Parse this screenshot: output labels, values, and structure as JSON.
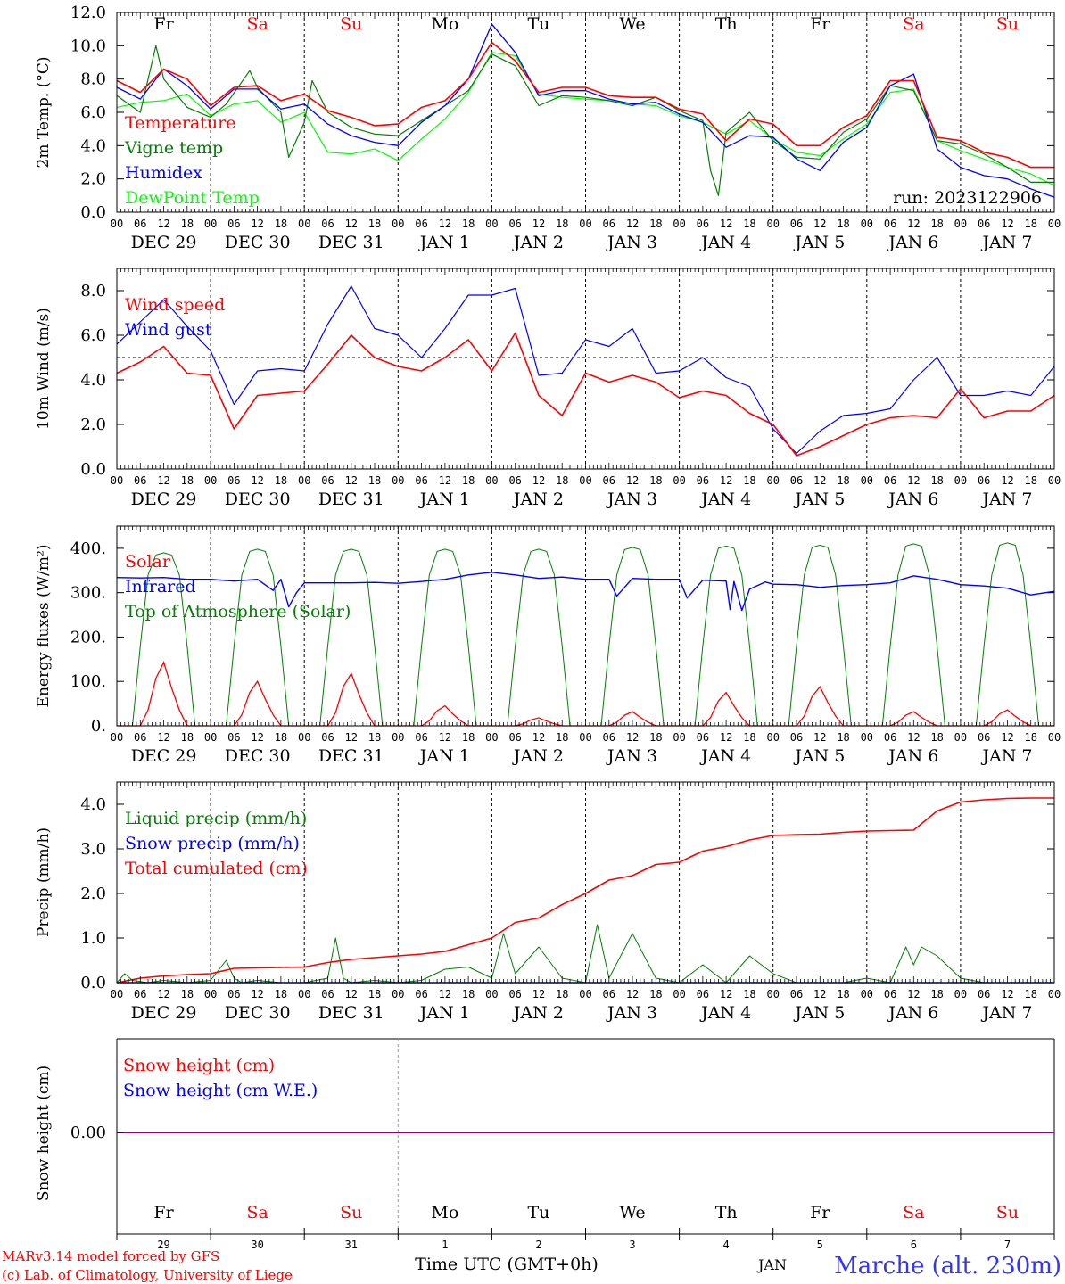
{
  "chart_data": [
    {
      "type": "line",
      "ylabel": "2m Temp. (°C)",
      "ylim": [
        0,
        12
      ],
      "yticks": [
        "0.0",
        "2.0",
        "4.0",
        "6.0",
        "8.0",
        "10.0",
        "12.0"
      ],
      "hour_ticks": [
        "00",
        "06",
        "12",
        "18"
      ],
      "dates": [
        "DEC 29",
        "DEC 30",
        "DEC 31",
        "JAN  1",
        "JAN  2",
        "JAN  3",
        "JAN  4",
        "JAN  5",
        "JAN  6",
        "JAN  7"
      ],
      "day_names": [
        {
          "label": "Fr",
          "color": "#000000"
        },
        {
          "label": "Sa",
          "color": "#ff0000"
        },
        {
          "label": "Su",
          "color": "#ff0000"
        },
        {
          "label": "Mo",
          "color": "#000000"
        },
        {
          "label": "Tu",
          "color": "#000000"
        },
        {
          "label": "We",
          "color": "#000000"
        },
        {
          "label": "Th",
          "color": "#000000"
        },
        {
          "label": "Fr",
          "color": "#000000"
        },
        {
          "label": "Sa",
          "color": "#ff0000"
        },
        {
          "label": "Su",
          "color": "#ff0000"
        }
      ],
      "run_label": "run: 2023122906",
      "x_unit": "hours since DEC 29 00 UTC",
      "series": [
        {
          "name": "Temperature",
          "color": "#ff0000",
          "x": [
            0,
            6,
            12,
            18,
            24,
            30,
            36,
            42,
            48,
            54,
            60,
            66,
            72,
            78,
            84,
            90,
            96,
            102,
            108,
            114,
            120,
            126,
            132,
            138,
            144,
            150,
            156,
            162,
            168,
            174,
            180,
            186,
            192,
            198,
            204,
            210,
            216,
            222,
            228,
            234,
            240
          ],
          "values": [
            7.9,
            7.2,
            8.6,
            8.0,
            6.4,
            7.5,
            7.6,
            6.7,
            7.1,
            6.1,
            5.7,
            5.2,
            5.3,
            6.3,
            6.7,
            8.0,
            10.2,
            9.1,
            7.2,
            7.5,
            7.5,
            7.0,
            6.9,
            6.9,
            6.2,
            5.9,
            4.3,
            5.6,
            5.3,
            4.0,
            4.0,
            5.1,
            5.8,
            7.9,
            7.9,
            4.5,
            4.3,
            3.6,
            3.3,
            2.7,
            2.7
          ]
        },
        {
          "name": "Vigne temp",
          "color": "#008000",
          "x": [
            0,
            6,
            10,
            12,
            18,
            24,
            28,
            34,
            36,
            42,
            44,
            48,
            50,
            54,
            60,
            66,
            72,
            78,
            84,
            90,
            96,
            102,
            108,
            114,
            120,
            126,
            132,
            138,
            144,
            150,
            152,
            154,
            156,
            162,
            168,
            174,
            180,
            186,
            192,
            198,
            204,
            210,
            216,
            222,
            228,
            234,
            240
          ],
          "values": [
            7.0,
            6.0,
            10.0,
            8.0,
            6.3,
            5.7,
            6.5,
            8.5,
            7.5,
            6.0,
            3.3,
            5.4,
            7.9,
            6.0,
            5.1,
            4.7,
            4.6,
            5.5,
            6.4,
            7.3,
            9.5,
            8.8,
            6.4,
            7.0,
            6.9,
            6.7,
            6.4,
            6.9,
            6.1,
            5.5,
            2.5,
            1.0,
            4.8,
            6.0,
            4.3,
            3.3,
            3.2,
            4.8,
            5.6,
            7.6,
            7.3,
            4.3,
            4.1,
            3.5,
            2.7,
            1.8,
            1.8
          ]
        },
        {
          "name": "Humidex",
          "color": "#0000ff",
          "x": [
            0,
            6,
            12,
            18,
            24,
            30,
            36,
            42,
            48,
            54,
            60,
            66,
            72,
            78,
            84,
            90,
            96,
            102,
            108,
            114,
            120,
            126,
            132,
            138,
            144,
            150,
            156,
            162,
            168,
            174,
            180,
            186,
            192,
            198,
            204,
            210,
            216,
            222,
            228,
            234,
            240
          ],
          "values": [
            7.5,
            6.8,
            8.6,
            7.6,
            6.2,
            7.4,
            7.4,
            6.2,
            6.5,
            5.3,
            4.6,
            4.2,
            4.0,
            5.4,
            6.4,
            8.0,
            11.3,
            9.6,
            7.0,
            7.3,
            7.3,
            6.8,
            6.5,
            6.6,
            5.9,
            5.4,
            3.9,
            4.6,
            4.5,
            3.2,
            2.5,
            4.2,
            5.1,
            7.6,
            8.3,
            3.8,
            2.7,
            2.2,
            2.0,
            1.4,
            0.9
          ]
        },
        {
          "name": "DewPoint Temp",
          "color": "#00ff00",
          "x": [
            0,
            6,
            12,
            18,
            24,
            30,
            36,
            42,
            48,
            54,
            60,
            66,
            72,
            78,
            84,
            90,
            96,
            102,
            108,
            114,
            120,
            126,
            132,
            138,
            144,
            150,
            156,
            162,
            168,
            174,
            180,
            186,
            192,
            198,
            204,
            210,
            216,
            222,
            228,
            234,
            240
          ],
          "values": [
            6.3,
            6.6,
            6.7,
            7.1,
            5.8,
            6.5,
            6.7,
            5.4,
            6.0,
            3.6,
            3.5,
            3.8,
            3.1,
            4.4,
            5.6,
            7.2,
            9.6,
            9.4,
            7.1,
            6.9,
            6.8,
            6.7,
            6.5,
            6.4,
            5.8,
            5.4,
            4.7,
            5.5,
            4.4,
            3.6,
            3.4,
            4.4,
            5.3,
            7.2,
            7.4,
            4.3,
            3.7,
            3.2,
            2.7,
            2.3,
            1.6
          ]
        }
      ]
    },
    {
      "type": "line",
      "ylabel": "10m Wind (m/s)",
      "ylim": [
        0,
        9
      ],
      "yticks": [
        "0.0",
        "2.0",
        "4.0",
        "6.0",
        "8.0"
      ],
      "reference_line": 5,
      "series": [
        {
          "name": "Wind speed",
          "color": "#ff0000",
          "x": [
            0,
            6,
            12,
            18,
            24,
            30,
            36,
            42,
            48,
            54,
            60,
            66,
            72,
            78,
            84,
            90,
            96,
            102,
            108,
            114,
            120,
            126,
            132,
            138,
            144,
            150,
            156,
            162,
            168,
            174,
            180,
            186,
            192,
            198,
            204,
            210,
            216,
            222,
            228,
            234,
            240
          ],
          "values": [
            4.3,
            4.8,
            5.5,
            4.3,
            4.2,
            1.8,
            3.3,
            3.4,
            3.5,
            4.7,
            6.0,
            5.0,
            4.6,
            4.4,
            5.0,
            5.8,
            4.4,
            6.1,
            3.3,
            2.4,
            4.3,
            3.9,
            4.2,
            3.9,
            3.2,
            3.5,
            3.3,
            2.5,
            2.0,
            0.6,
            1.0,
            1.5,
            2.0,
            2.3,
            2.4,
            2.3,
            3.6,
            2.3,
            2.6,
            2.6,
            3.3
          ]
        },
        {
          "name": "Wind gust",
          "color": "#0000ff",
          "x": [
            0,
            6,
            12,
            18,
            24,
            30,
            36,
            42,
            48,
            54,
            60,
            66,
            72,
            78,
            84,
            90,
            96,
            102,
            108,
            114,
            120,
            126,
            132,
            138,
            144,
            150,
            156,
            162,
            168,
            174,
            180,
            186,
            192,
            198,
            204,
            210,
            216,
            222,
            228,
            234,
            240
          ],
          "values": [
            5.6,
            6.6,
            7.6,
            6.4,
            5.3,
            2.9,
            4.4,
            4.5,
            4.4,
            6.5,
            8.2,
            6.3,
            6.0,
            5.0,
            6.3,
            7.8,
            7.8,
            8.1,
            4.2,
            4.3,
            5.8,
            5.5,
            6.3,
            4.3,
            4.4,
            5.0,
            4.1,
            3.7,
            1.8,
            0.7,
            1.7,
            2.4,
            2.5,
            2.7,
            4.0,
            5.0,
            3.3,
            3.3,
            3.5,
            3.3,
            4.6
          ]
        }
      ]
    },
    {
      "type": "line",
      "ylabel": "Energy fluxes (W/m²)",
      "ylim": [
        0,
        450
      ],
      "yticks": [
        "0.",
        "100.",
        "200.",
        "300.",
        "400."
      ],
      "peaks": {
        "toa": [
          390,
          398,
          398,
          398,
          398,
          402,
          405,
          407,
          410,
          412
        ],
        "solar": [
          143,
          100,
          118,
          45,
          18,
          32,
          75,
          88,
          32,
          36
        ]
      },
      "infrared": {
        "name": "Infrared",
        "color": "#0000ff",
        "x": [
          0,
          6,
          12,
          18,
          24,
          30,
          36,
          40,
          42,
          44,
          46,
          48,
          54,
          60,
          66,
          72,
          78,
          84,
          90,
          96,
          102,
          108,
          114,
          120,
          126,
          128,
          132,
          138,
          144,
          146,
          150,
          156,
          157,
          158,
          160,
          162,
          166,
          168,
          174,
          180,
          186,
          192,
          198,
          204,
          210,
          216,
          222,
          228,
          234,
          240
        ],
        "values": [
          334,
          333,
          334,
          330,
          330,
          326,
          330,
          305,
          330,
          268,
          300,
          322,
          322,
          322,
          323,
          321,
          325,
          330,
          340,
          346,
          340,
          332,
          335,
          330,
          330,
          292,
          332,
          330,
          330,
          288,
          328,
          326,
          262,
          325,
          260,
          308,
          324,
          319,
          318,
          312,
          316,
          318,
          322,
          338,
          330,
          318,
          315,
          310,
          295,
          303
        ]
      },
      "legend": [
        {
          "name": "Solar",
          "color": "#ff0000"
        },
        {
          "name": "Infrared",
          "color": "#0000ff"
        },
        {
          "name": "Top of Atmosphere (Solar)",
          "color": "#008000"
        }
      ]
    },
    {
      "type": "line",
      "ylabel": "Precip (mm/h)",
      "ylim": [
        0,
        4.5
      ],
      "yticks": [
        "0.0",
        "1.0",
        "2.0",
        "3.0",
        "4.0"
      ],
      "series": [
        {
          "name": "Liquid precip (mm/h)",
          "color": "#008000",
          "x": [
            0,
            2,
            4,
            8,
            12,
            18,
            24,
            28,
            30,
            32,
            36,
            42,
            48,
            54,
            56,
            58,
            60,
            66,
            72,
            78,
            84,
            90,
            96,
            99,
            102,
            108,
            114,
            120,
            123,
            126,
            132,
            138,
            144,
            150,
            156,
            162,
            168,
            174,
            180,
            186,
            192,
            198,
            202,
            204,
            206,
            210,
            216,
            222,
            228,
            234,
            240
          ],
          "values": [
            0,
            0.2,
            0.05,
            0,
            0.05,
            0,
            0.05,
            0.5,
            0.1,
            0,
            0.05,
            0,
            0,
            0.1,
            1.0,
            0.1,
            0,
            0.05,
            0,
            0.05,
            0.3,
            0.35,
            0.1,
            1.1,
            0.2,
            0.8,
            0.1,
            0,
            1.3,
            0.1,
            1.1,
            0.1,
            0,
            0.4,
            0,
            0.6,
            0.2,
            0,
            0,
            0,
            0.1,
            0,
            0.8,
            0.4,
            0.8,
            0.6,
            0.1,
            0,
            0,
            0,
            0
          ]
        },
        {
          "name": "Snow precip (mm/h)",
          "color": "#0000ff",
          "x": [
            0,
            240
          ],
          "values": [
            0,
            0
          ]
        },
        {
          "name": "Total cumulated (cm)",
          "color": "#ff0000",
          "x": [
            0,
            6,
            12,
            18,
            24,
            30,
            36,
            42,
            48,
            54,
            60,
            66,
            72,
            78,
            84,
            90,
            96,
            102,
            108,
            114,
            120,
            126,
            132,
            138,
            144,
            150,
            156,
            162,
            168,
            174,
            180,
            186,
            192,
            198,
            204,
            210,
            216,
            222,
            228,
            234,
            240
          ],
          "values": [
            0,
            0.1,
            0.15,
            0.18,
            0.2,
            0.32,
            0.33,
            0.34,
            0.35,
            0.45,
            0.52,
            0.56,
            0.6,
            0.64,
            0.7,
            0.85,
            1.0,
            1.35,
            1.45,
            1.75,
            2.0,
            2.3,
            2.4,
            2.65,
            2.7,
            2.95,
            3.05,
            3.2,
            3.3,
            3.32,
            3.33,
            3.37,
            3.4,
            3.41,
            3.42,
            3.85,
            4.05,
            4.1,
            4.13,
            4.14,
            4.14
          ]
        }
      ]
    },
    {
      "type": "line",
      "ylabel": "Snow height (cm)",
      "ytick": "0.00",
      "series": [
        {
          "name": "Snow height (cm)",
          "color": "#ff0000",
          "values": [
            0,
            0
          ]
        },
        {
          "name": "Snow height (cm W.E.)",
          "color": "#0000ff",
          "values": [
            0,
            0
          ]
        }
      ],
      "day_names": [
        "Fr",
        "Sa",
        "Su",
        "Mo",
        "Tu",
        "We",
        "Th",
        "Fr",
        "Sa",
        "Su"
      ],
      "day_numbers": [
        "29",
        "30",
        "31",
        "1",
        "2",
        "3",
        "4",
        "5",
        "6",
        "7"
      ],
      "month_label": "JAN",
      "xlabel": "Time UTC (GMT+0h)"
    }
  ],
  "footer": {
    "line1": "MARv3.14 model forced by GFS",
    "line2": "(c) Lab. of Climatology, University of Liege",
    "location": "Marche (alt. 230m)"
  },
  "colors": {
    "red": "#ff0000",
    "blue": "#0000ff",
    "green": "#008000",
    "light_green": "#00ff00",
    "purple": "#800080"
  }
}
